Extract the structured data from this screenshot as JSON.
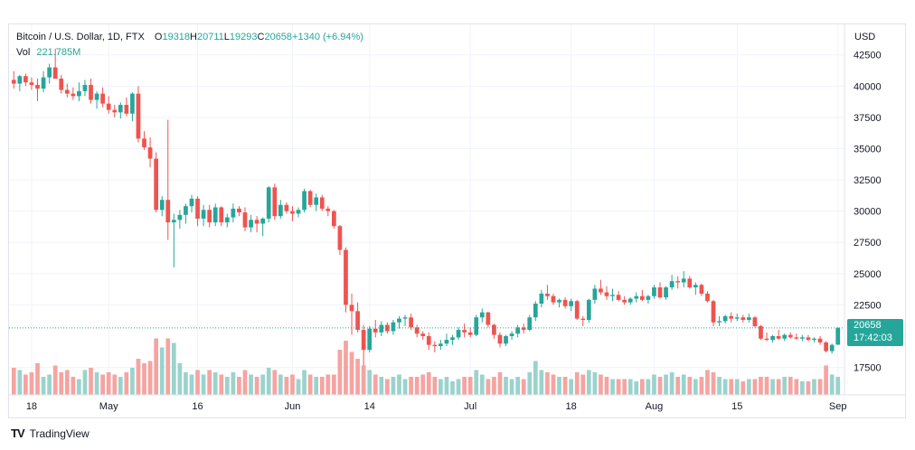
{
  "header": {
    "title": "Bitcoin / U.S. Dollar, 1D, FTX",
    "open_label": "O",
    "open_value": "19318",
    "high_label": "H",
    "high_value": "20711",
    "low_label": "L",
    "low_value": "19293",
    "close_label": "C",
    "close_value": "20658",
    "change": "+1340 (+6.94%)",
    "vol_label": "Vol",
    "vol_value": "221.785M"
  },
  "price_axis": {
    "currency": "USD"
  },
  "last_price": {
    "value": "20658",
    "countdown": "17:42:03"
  },
  "footer": {
    "logo_text": "TV",
    "brand": "TradingView"
  },
  "colors": {
    "up": "#26a69a",
    "down": "#ef5350",
    "up_vol": "#9bd3cc",
    "down_vol": "#f5a4a1",
    "grid": "#f0f3fa"
  },
  "chart_data": {
    "type": "candlestick",
    "symbol": "Bitcoin / U.S. Dollar",
    "interval": "1D",
    "exchange": "FTX",
    "y_ticks": [
      17500,
      22500,
      25000,
      27500,
      30000,
      32500,
      35000,
      37500,
      40000,
      42500
    ],
    "ylim": [
      15300,
      44000
    ],
    "x_ticks": [
      {
        "label": "18",
        "date": "2022-04-18"
      },
      {
        "label": "May",
        "date": "2022-05-01"
      },
      {
        "label": "16",
        "date": "2022-05-16"
      },
      {
        "label": "Jun",
        "date": "2022-06-01"
      },
      {
        "label": "14",
        "date": "2022-06-14"
      },
      {
        "label": "Jul",
        "date": "2022-07-01"
      },
      {
        "label": "18",
        "date": "2022-07-18"
      },
      {
        "label": "Aug",
        "date": "2022-08-01"
      },
      {
        "label": "15",
        "date": "2022-08-15"
      },
      {
        "label": "Sep",
        "date": "2022-09-01"
      }
    ],
    "start_date": "2022-04-15",
    "candles": [
      [
        40500,
        41200,
        39800,
        40200,
        60
      ],
      [
        40200,
        40900,
        39600,
        40800,
        55
      ],
      [
        40800,
        41000,
        40000,
        40300,
        45
      ],
      [
        40300,
        40700,
        39700,
        40100,
        50
      ],
      [
        40100,
        40600,
        38800,
        39800,
        70
      ],
      [
        39800,
        41200,
        39500,
        40700,
        40
      ],
      [
        40700,
        41800,
        40200,
        41500,
        45
      ],
      [
        41500,
        43000,
        40800,
        40600,
        65
      ],
      [
        40600,
        40900,
        39400,
        39700,
        50
      ],
      [
        39700,
        40200,
        39100,
        39400,
        55
      ],
      [
        39400,
        39900,
        38900,
        39200,
        40
      ],
      [
        39200,
        40300,
        38800,
        39600,
        35
      ],
      [
        39600,
        40500,
        39200,
        40100,
        55
      ],
      [
        40100,
        40600,
        38600,
        38900,
        60
      ],
      [
        38900,
        39600,
        38200,
        39400,
        50
      ],
      [
        39400,
        39900,
        38300,
        38600,
        45
      ],
      [
        38600,
        39200,
        37800,
        38100,
        50
      ],
      [
        38100,
        38500,
        37500,
        37900,
        45
      ],
      [
        37900,
        38700,
        37400,
        38500,
        40
      ],
      [
        38500,
        39100,
        37600,
        37800,
        50
      ],
      [
        37800,
        39500,
        37200,
        39400,
        60
      ],
      [
        39400,
        40000,
        35500,
        35800,
        80
      ],
      [
        35800,
        36400,
        34900,
        35100,
        70
      ],
      [
        35100,
        35900,
        33500,
        34200,
        75
      ],
      [
        34200,
        34700,
        29900,
        30100,
        125
      ],
      [
        30100,
        31200,
        29600,
        30900,
        105
      ],
      [
        30900,
        37300,
        27700,
        29100,
        125
      ],
      [
        29100,
        29800,
        25500,
        29300,
        115
      ],
      [
        29300,
        30100,
        28600,
        29700,
        70
      ],
      [
        29700,
        30600,
        29000,
        30400,
        50
      ],
      [
        30400,
        31300,
        29900,
        31000,
        45
      ],
      [
        31000,
        31200,
        28800,
        29400,
        55
      ],
      [
        29400,
        30500,
        28800,
        30100,
        45
      ],
      [
        30100,
        30500,
        28700,
        29100,
        55
      ],
      [
        29100,
        30600,
        28800,
        30300,
        50
      ],
      [
        30300,
        30400,
        28800,
        29100,
        45
      ],
      [
        29100,
        29800,
        28700,
        29500,
        40
      ],
      [
        29500,
        30600,
        29100,
        30200,
        50
      ],
      [
        30200,
        30400,
        29600,
        29900,
        40
      ],
      [
        29900,
        30300,
        28400,
        28700,
        55
      ],
      [
        28700,
        29700,
        28300,
        29300,
        45
      ],
      [
        29300,
        29600,
        28300,
        29000,
        40
      ],
      [
        29000,
        29500,
        28000,
        29400,
        45
      ],
      [
        29400,
        32000,
        29100,
        31900,
        60
      ],
      [
        31900,
        32200,
        29300,
        29600,
        55
      ],
      [
        29600,
        30900,
        29400,
        30500,
        45
      ],
      [
        30500,
        30700,
        29800,
        30000,
        40
      ],
      [
        30000,
        30400,
        29200,
        29800,
        45
      ],
      [
        29800,
        30300,
        29500,
        30100,
        35
      ],
      [
        30100,
        31800,
        29900,
        31600,
        55
      ],
      [
        31600,
        31700,
        30300,
        30500,
        45
      ],
      [
        30500,
        31400,
        30000,
        31100,
        40
      ],
      [
        31100,
        31300,
        30000,
        30200,
        40
      ],
      [
        30200,
        30400,
        29600,
        30000,
        45
      ],
      [
        30000,
        30100,
        28600,
        28800,
        45
      ],
      [
        28800,
        28900,
        26500,
        26900,
        100
      ],
      [
        26900,
        27100,
        21900,
        22500,
        120
      ],
      [
        22500,
        23400,
        20100,
        22000,
        95
      ],
      [
        22000,
        22700,
        20300,
        20500,
        80
      ],
      [
        20500,
        20900,
        17600,
        18900,
        65
      ],
      [
        18900,
        20800,
        18700,
        20600,
        55
      ],
      [
        20600,
        21300,
        19900,
        20300,
        45
      ],
      [
        20300,
        21200,
        20000,
        20900,
        40
      ],
      [
        20900,
        21100,
        20200,
        20400,
        35
      ],
      [
        20400,
        21300,
        20100,
        21100,
        40
      ],
      [
        21100,
        21600,
        20600,
        21400,
        45
      ],
      [
        21400,
        21700,
        20800,
        21500,
        35
      ],
      [
        21500,
        21800,
        20500,
        20700,
        40
      ],
      [
        20700,
        20900,
        19900,
        20200,
        40
      ],
      [
        20200,
        20400,
        19700,
        20000,
        45
      ],
      [
        20000,
        20300,
        18900,
        19300,
        50
      ],
      [
        19300,
        19600,
        18700,
        19200,
        40
      ],
      [
        19200,
        19700,
        18900,
        19400,
        35
      ],
      [
        19400,
        20200,
        19200,
        19700,
        40
      ],
      [
        19700,
        20100,
        19300,
        19900,
        30
      ],
      [
        19900,
        20700,
        19700,
        20500,
        35
      ],
      [
        20500,
        21000,
        19900,
        20300,
        40
      ],
      [
        20300,
        20700,
        19900,
        20100,
        40
      ],
      [
        20100,
        21700,
        20000,
        21500,
        55
      ],
      [
        21500,
        22200,
        21100,
        21900,
        45
      ],
      [
        21900,
        21950,
        20700,
        20900,
        35
      ],
      [
        20900,
        21000,
        19800,
        20100,
        40
      ],
      [
        20100,
        20300,
        19100,
        19400,
        50
      ],
      [
        19400,
        20100,
        19200,
        20000,
        40
      ],
      [
        20000,
        20400,
        19700,
        20200,
        35
      ],
      [
        20200,
        20900,
        19900,
        20700,
        40
      ],
      [
        20700,
        21000,
        20200,
        20500,
        35
      ],
      [
        20500,
        21700,
        20400,
        21500,
        50
      ],
      [
        21500,
        22800,
        21200,
        22600,
        75
      ],
      [
        22600,
        23700,
        22300,
        23400,
        55
      ],
      [
        23400,
        24100,
        22900,
        23200,
        50
      ],
      [
        23200,
        23400,
        22500,
        22700,
        45
      ],
      [
        22700,
        23000,
        22300,
        22900,
        40
      ],
      [
        22900,
        23100,
        22200,
        22400,
        40
      ],
      [
        22400,
        23000,
        22000,
        22800,
        35
      ],
      [
        22800,
        22900,
        21300,
        21400,
        50
      ],
      [
        21400,
        21600,
        20800,
        21300,
        45
      ],
      [
        21300,
        23000,
        21100,
        22900,
        55
      ],
      [
        22900,
        24100,
        22600,
        23800,
        50
      ],
      [
        23800,
        24500,
        23300,
        23500,
        45
      ],
      [
        23500,
        24000,
        22900,
        23200,
        40
      ],
      [
        23200,
        23800,
        22800,
        23300,
        35
      ],
      [
        23300,
        23600,
        22800,
        22900,
        35
      ],
      [
        22900,
        23200,
        22500,
        22700,
        35
      ],
      [
        22700,
        23100,
        22500,
        23000,
        35
      ],
      [
        23000,
        23500,
        22700,
        23200,
        30
      ],
      [
        23200,
        23700,
        22800,
        22900,
        35
      ],
      [
        22900,
        23300,
        22600,
        23200,
        35
      ],
      [
        23200,
        24100,
        23000,
        23900,
        45
      ],
      [
        23900,
        24300,
        23000,
        23100,
        40
      ],
      [
        23100,
        24000,
        22900,
        23900,
        45
      ],
      [
        23900,
        24900,
        23700,
        24400,
        50
      ],
      [
        24400,
        24800,
        23800,
        24300,
        40
      ],
      [
        24300,
        25200,
        23900,
        24600,
        45
      ],
      [
        24600,
        24800,
        23800,
        23900,
        40
      ],
      [
        23900,
        24300,
        23300,
        24100,
        35
      ],
      [
        24100,
        24200,
        23200,
        23400,
        40
      ],
      [
        23400,
        23600,
        22700,
        22800,
        55
      ],
      [
        22800,
        22900,
        20800,
        21100,
        50
      ],
      [
        21100,
        21600,
        20800,
        21200,
        40
      ],
      [
        21200,
        21700,
        21000,
        21600,
        35
      ],
      [
        21600,
        21900,
        21100,
        21400,
        35
      ],
      [
        21400,
        21800,
        21200,
        21500,
        35
      ],
      [
        21500,
        21700,
        21100,
        21300,
        30
      ],
      [
        21300,
        21800,
        21100,
        21500,
        35
      ],
      [
        21500,
        21600,
        20700,
        20800,
        35
      ],
      [
        20800,
        20900,
        19700,
        19800,
        40
      ],
      [
        19800,
        20300,
        19600,
        19700,
        40
      ],
      [
        19700,
        20100,
        19500,
        20000,
        35
      ],
      [
        20000,
        20500,
        19700,
        19800,
        35
      ],
      [
        19800,
        20200,
        19600,
        20100,
        40
      ],
      [
        20100,
        20300,
        19800,
        19900,
        40
      ],
      [
        19900,
        20200,
        19700,
        19800,
        35
      ],
      [
        19800,
        20100,
        19600,
        19900,
        30
      ],
      [
        19900,
        20100,
        19600,
        19700,
        30
      ],
      [
        19700,
        19900,
        19500,
        19800,
        35
      ],
      [
        19800,
        20000,
        19300,
        19500,
        35
      ],
      [
        19500,
        19600,
        18700,
        18800,
        65
      ],
      [
        18800,
        19400,
        18600,
        19300,
        45
      ],
      [
        19318,
        20711,
        19293,
        20658,
        40
      ]
    ]
  }
}
